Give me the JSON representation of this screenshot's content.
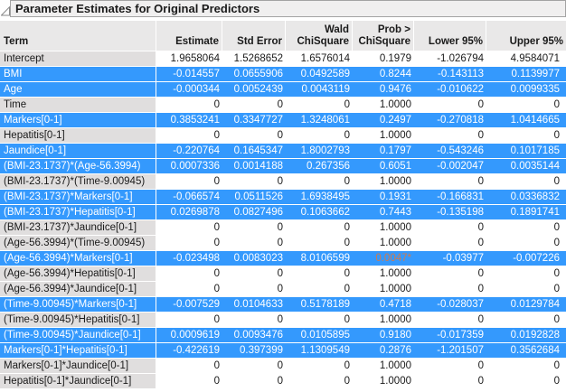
{
  "title": "Parameter Estimates for Original Predictors",
  "icons": {
    "disclosure": "open-disclosure-triangle"
  },
  "colors": {
    "selection_blue": "#3499fd",
    "term_cell_gray": "#e0dede",
    "header_gray": "#e9e8e8",
    "title_bar_gray": "#f0efef",
    "border_gray": "#a3a3a3",
    "significant_prob_orange": "#d07a4e",
    "text_black": "#1a1a1a",
    "selected_text_white": "#ffffff"
  },
  "table": {
    "columns": [
      {
        "id": "term",
        "line1": "",
        "line2": "Term"
      },
      {
        "id": "estimate",
        "line1": "",
        "line2": "Estimate"
      },
      {
        "id": "std-error",
        "line1": "",
        "line2": "Std Error"
      },
      {
        "id": "wald-chisquare",
        "line1": "Wald",
        "line2": "ChiSquare"
      },
      {
        "id": "prob-chisquare",
        "line1": "Prob >",
        "line2": "ChiSquare"
      },
      {
        "id": "lower-95",
        "line1": "",
        "line2": "Lower 95%"
      },
      {
        "id": "upper-95",
        "line1": "",
        "line2": "Upper 95%"
      }
    ],
    "rows": [
      {
        "term": "Intercept",
        "estimate": "1.9658064",
        "std_error": "1.5268652",
        "wald_chisquare": "1.6576014",
        "prob_chisquare": "0.1979",
        "lower_95": "-1.026794",
        "upper_95": "4.9584071",
        "selected": false,
        "prob_significant": false
      },
      {
        "term": "BMI",
        "estimate": "-0.014557",
        "std_error": "0.0655906",
        "wald_chisquare": "0.0492589",
        "prob_chisquare": "0.8244",
        "lower_95": "-0.143113",
        "upper_95": "0.1139977",
        "selected": true,
        "prob_significant": false
      },
      {
        "term": "Age",
        "estimate": "-0.000344",
        "std_error": "0.0052439",
        "wald_chisquare": "0.0043119",
        "prob_chisquare": "0.9476",
        "lower_95": "-0.010622",
        "upper_95": "0.0099335",
        "selected": true,
        "prob_significant": false
      },
      {
        "term": "Time",
        "estimate": "0",
        "std_error": "0",
        "wald_chisquare": "0",
        "prob_chisquare": "1.0000",
        "lower_95": "0",
        "upper_95": "0",
        "selected": false,
        "prob_significant": false
      },
      {
        "term": "Markers[0-1]",
        "estimate": "0.3853241",
        "std_error": "0.3347727",
        "wald_chisquare": "1.3248061",
        "prob_chisquare": "0.2497",
        "lower_95": "-0.270818",
        "upper_95": "1.0414665",
        "selected": true,
        "prob_significant": false
      },
      {
        "term": "Hepatitis[0-1]",
        "estimate": "0",
        "std_error": "0",
        "wald_chisquare": "0",
        "prob_chisquare": "1.0000",
        "lower_95": "0",
        "upper_95": "0",
        "selected": false,
        "prob_significant": false
      },
      {
        "term": "Jaundice[0-1]",
        "estimate": "-0.220764",
        "std_error": "0.1645347",
        "wald_chisquare": "1.8002793",
        "prob_chisquare": "0.1797",
        "lower_95": "-0.543246",
        "upper_95": "0.1017185",
        "selected": true,
        "prob_significant": false
      },
      {
        "term": "(BMI-23.1737)*(Age-56.3994)",
        "estimate": "0.0007336",
        "std_error": "0.0014188",
        "wald_chisquare": "0.267356",
        "prob_chisquare": "0.6051",
        "lower_95": "-0.002047",
        "upper_95": "0.0035144",
        "selected": true,
        "prob_significant": false
      },
      {
        "term": "(BMI-23.1737)*(Time-9.00945)",
        "estimate": "0",
        "std_error": "0",
        "wald_chisquare": "0",
        "prob_chisquare": "1.0000",
        "lower_95": "0",
        "upper_95": "0",
        "selected": false,
        "prob_significant": false
      },
      {
        "term": "(BMI-23.1737)*Markers[0-1]",
        "estimate": "-0.066574",
        "std_error": "0.0511526",
        "wald_chisquare": "1.6938495",
        "prob_chisquare": "0.1931",
        "lower_95": "-0.166831",
        "upper_95": "0.0336832",
        "selected": true,
        "prob_significant": false
      },
      {
        "term": "(BMI-23.1737)*Hepatitis[0-1]",
        "estimate": "0.0269878",
        "std_error": "0.0827496",
        "wald_chisquare": "0.1063662",
        "prob_chisquare": "0.7443",
        "lower_95": "-0.135198",
        "upper_95": "0.1891741",
        "selected": true,
        "prob_significant": false
      },
      {
        "term": "(BMI-23.1737)*Jaundice[0-1]",
        "estimate": "0",
        "std_error": "0",
        "wald_chisquare": "0",
        "prob_chisquare": "1.0000",
        "lower_95": "0",
        "upper_95": "0",
        "selected": false,
        "prob_significant": false
      },
      {
        "term": "(Age-56.3994)*(Time-9.00945)",
        "estimate": "0",
        "std_error": "0",
        "wald_chisquare": "0",
        "prob_chisquare": "1.0000",
        "lower_95": "0",
        "upper_95": "0",
        "selected": false,
        "prob_significant": false
      },
      {
        "term": "(Age-56.3994)*Markers[0-1]",
        "estimate": "-0.023498",
        "std_error": "0.0083023",
        "wald_chisquare": "8.0106599",
        "prob_chisquare": "0.0047*",
        "lower_95": "-0.03977",
        "upper_95": "-0.007226",
        "selected": true,
        "prob_significant": true
      },
      {
        "term": "(Age-56.3994)*Hepatitis[0-1]",
        "estimate": "0",
        "std_error": "0",
        "wald_chisquare": "0",
        "prob_chisquare": "1.0000",
        "lower_95": "0",
        "upper_95": "0",
        "selected": false,
        "prob_significant": false
      },
      {
        "term": "(Age-56.3994)*Jaundice[0-1]",
        "estimate": "0",
        "std_error": "0",
        "wald_chisquare": "0",
        "prob_chisquare": "1.0000",
        "lower_95": "0",
        "upper_95": "0",
        "selected": false,
        "prob_significant": false
      },
      {
        "term": "(Time-9.00945)*Markers[0-1]",
        "estimate": "-0.007529",
        "std_error": "0.0104633",
        "wald_chisquare": "0.5178189",
        "prob_chisquare": "0.4718",
        "lower_95": "-0.028037",
        "upper_95": "0.0129784",
        "selected": true,
        "prob_significant": false
      },
      {
        "term": "(Time-9.00945)*Hepatitis[0-1]",
        "estimate": "0",
        "std_error": "0",
        "wald_chisquare": "0",
        "prob_chisquare": "1.0000",
        "lower_95": "0",
        "upper_95": "0",
        "selected": false,
        "prob_significant": false
      },
      {
        "term": "(Time-9.00945)*Jaundice[0-1]",
        "estimate": "0.0009619",
        "std_error": "0.0093476",
        "wald_chisquare": "0.0105895",
        "prob_chisquare": "0.9180",
        "lower_95": "-0.017359",
        "upper_95": "0.0192828",
        "selected": true,
        "prob_significant": false
      },
      {
        "term": "Markers[0-1]*Hepatitis[0-1]",
        "estimate": "-0.422619",
        "std_error": "0.397399",
        "wald_chisquare": "1.1309549",
        "prob_chisquare": "0.2876",
        "lower_95": "-1.201507",
        "upper_95": "0.3562684",
        "selected": true,
        "prob_significant": false
      },
      {
        "term": "Markers[0-1]*Jaundice[0-1]",
        "estimate": "0",
        "std_error": "0",
        "wald_chisquare": "0",
        "prob_chisquare": "1.0000",
        "lower_95": "0",
        "upper_95": "0",
        "selected": false,
        "prob_significant": false
      },
      {
        "term": "Hepatitis[0-1]*Jaundice[0-1]",
        "estimate": "0",
        "std_error": "0",
        "wald_chisquare": "0",
        "prob_chisquare": "1.0000",
        "lower_95": "0",
        "upper_95": "0",
        "selected": false,
        "prob_significant": false
      }
    ]
  }
}
